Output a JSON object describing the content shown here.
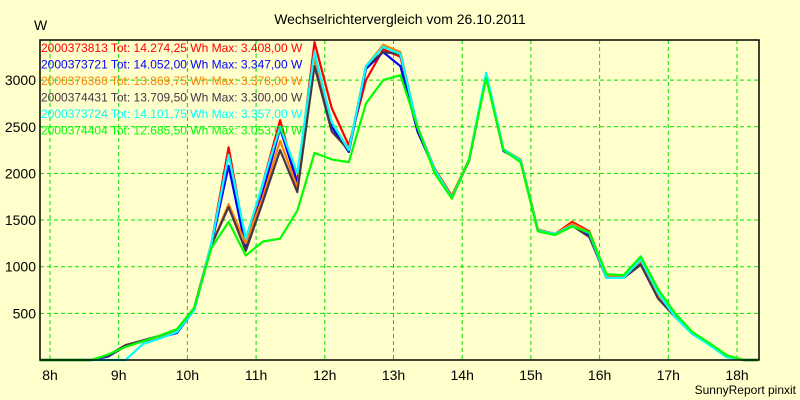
{
  "chart_data": {
    "type": "line",
    "title": "Wechselrichtervergleich vom 26.10.2011",
    "ylabel": "W",
    "xlabel": "",
    "footer": "SunnyReport pinxit",
    "xlim": [
      7.85,
      18.3
    ],
    "ylim": [
      0,
      3430
    ],
    "grid": true,
    "legend_placement": "top-left",
    "x_ticks": [
      {
        "v": 8,
        "label": "8h"
      },
      {
        "v": 9,
        "label": "9h"
      },
      {
        "v": 10,
        "label": "10h"
      },
      {
        "v": 11,
        "label": "11h"
      },
      {
        "v": 12,
        "label": "12h"
      },
      {
        "v": 13,
        "label": "13h"
      },
      {
        "v": 14,
        "label": "14h"
      },
      {
        "v": 15,
        "label": "15h"
      },
      {
        "v": 16,
        "label": "16h"
      },
      {
        "v": 17,
        "label": "17h"
      },
      {
        "v": 18,
        "label": "18h"
      }
    ],
    "y_ticks": [
      {
        "v": 500,
        "label": "500"
      },
      {
        "v": 1000,
        "label": "1000"
      },
      {
        "v": 1500,
        "label": "1500"
      },
      {
        "v": 2000,
        "label": "2000"
      },
      {
        "v": 2500,
        "label": "2500"
      },
      {
        "v": 3000,
        "label": "3000"
      }
    ],
    "x": [
      7.85,
      8.6,
      8.85,
      9.1,
      9.35,
      9.6,
      9.85,
      10.1,
      10.35,
      10.6,
      10.85,
      11.1,
      11.35,
      11.6,
      11.85,
      12.1,
      12.35,
      12.6,
      12.85,
      13.1,
      13.35,
      13.6,
      13.85,
      14.1,
      14.35,
      14.6,
      14.85,
      15.1,
      15.35,
      15.6,
      15.85,
      16.1,
      16.35,
      16.6,
      16.85,
      17.1,
      17.35,
      17.6,
      17.85,
      18.1,
      18.3
    ],
    "series": [
      {
        "name": "2000373813",
        "legend": "2000373813 Tot: 14.274,25 Wh Max: 3.408,00 W",
        "color": "#ff0000",
        "values": [
          0,
          0,
          40,
          150,
          200,
          250,
          310,
          560,
          1250,
          2280,
          1250,
          1900,
          2570,
          1900,
          3408,
          2700,
          2300,
          3000,
          3330,
          3250,
          2500,
          2050,
          1760,
          2150,
          3050,
          2250,
          2150,
          1400,
          1350,
          1480,
          1380,
          900,
          900,
          1050,
          700,
          480,
          290,
          170,
          40,
          0,
          0
        ]
      },
      {
        "name": "2000373721",
        "legend": "2000373721 Tot: 14.052,00 Wh Max: 3.347,00 W",
        "color": "#0000ff",
        "values": [
          0,
          0,
          40,
          150,
          200,
          240,
          290,
          540,
          1230,
          2080,
          1200,
          1800,
          2480,
          1900,
          3250,
          2500,
          2230,
          3120,
          3300,
          3150,
          2450,
          2030,
          1740,
          2140,
          3050,
          2240,
          2140,
          1390,
          1350,
          1450,
          1340,
          880,
          880,
          1030,
          690,
          470,
          280,
          170,
          40,
          0,
          0
        ]
      },
      {
        "name": "2000376360",
        "legend": "2000376360 Tot: 13.869,75 Wh Max: 3.378,00 W",
        "color": "#ff8000",
        "values": [
          0,
          0,
          50,
          150,
          200,
          250,
          310,
          560,
          1230,
          1670,
          1250,
          1750,
          2350,
          1850,
          3250,
          2550,
          2250,
          3150,
          3378,
          3300,
          2500,
          2040,
          1750,
          2150,
          3050,
          2260,
          2150,
          1400,
          1350,
          1460,
          1370,
          900,
          900,
          1060,
          690,
          470,
          280,
          170,
          40,
          0,
          0
        ]
      },
      {
        "name": "2000374431",
        "legend": "2000374431 Tot: 13.709,50 Wh Max: 3.300,00 W",
        "color": "#4a3347",
        "values": [
          0,
          0,
          50,
          160,
          210,
          260,
          330,
          560,
          1230,
          1640,
          1170,
          1700,
          2250,
          1800,
          3150,
          2450,
          2250,
          3150,
          3300,
          3280,
          2480,
          2030,
          1740,
          2140,
          3040,
          2250,
          2130,
          1390,
          1350,
          1440,
          1320,
          880,
          880,
          1020,
          660,
          460,
          280,
          170,
          40,
          0,
          0
        ]
      },
      {
        "name": "2000373724",
        "legend": "2000373724 Tot: 14.101,75 Wh Max: 3.357,00 W",
        "color": "#00ffff",
        "values": [
          0,
          0,
          0,
          0,
          170,
          230,
          300,
          540,
          1250,
          2200,
          1300,
          1900,
          2500,
          2000,
          3300,
          2550,
          2250,
          3150,
          3357,
          3280,
          2500,
          2040,
          1740,
          2150,
          3080,
          2260,
          2140,
          1390,
          1350,
          1440,
          1360,
          880,
          880,
          1080,
          720,
          460,
          280,
          160,
          30,
          0,
          0
        ]
      },
      {
        "name": "2000374404",
        "legend": "2000374404 Tot: 12.685,50 Wh Max: 3.053,00 W",
        "color": "#00ff00",
        "values": [
          0,
          0,
          60,
          140,
          200,
          260,
          330,
          560,
          1200,
          1480,
          1120,
          1270,
          1300,
          1600,
          2220,
          2150,
          2120,
          2750,
          3000,
          3053,
          2500,
          2000,
          1730,
          2150,
          3020,
          2250,
          2120,
          1380,
          1340,
          1430,
          1370,
          920,
          910,
          1110,
          760,
          500,
          300,
          180,
          50,
          0,
          0
        ]
      }
    ]
  }
}
